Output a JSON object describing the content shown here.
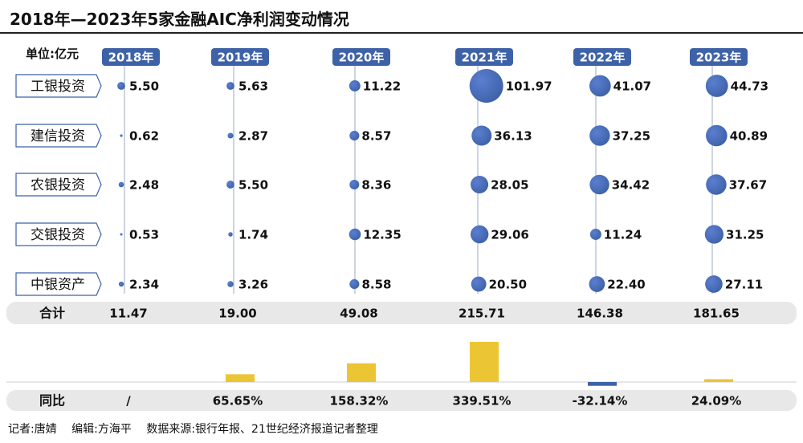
{
  "title": "2018年—2023年5家金融AIC净利润变动情况",
  "unit_label": "单位:亿元",
  "total_label": "合计",
  "yoy_label": "同比",
  "credits": {
    "reporter": "记者:唐婧",
    "editor": "编辑:方海平",
    "source": "数据来源:银行年报、21世纪经济报道记者整理"
  },
  "colors": {
    "bubble": "#3e62a8",
    "header_bg": "#3e62a8",
    "bar_positive": "#ecc534",
    "bar_negative": "#3e62a8",
    "band_bg": "#e8e8e8"
  },
  "chart_data": {
    "type": "bubble",
    "categories": [
      "2018年",
      "2019年",
      "2020年",
      "2021年",
      "2022年",
      "2023年"
    ],
    "series": [
      {
        "name": "工银投资",
        "values": [
          "5.50",
          "5.63",
          "11.22",
          "101.97",
          "41.07",
          "44.73"
        ]
      },
      {
        "name": "建信投资",
        "values": [
          "0.62",
          "2.87",
          "8.57",
          "36.13",
          "37.25",
          "40.89"
        ]
      },
      {
        "name": "农银投资",
        "values": [
          "2.48",
          "5.50",
          "8.36",
          "28.05",
          "34.42",
          "37.67"
        ]
      },
      {
        "name": "交银投资",
        "values": [
          "0.53",
          "1.74",
          "12.35",
          "29.06",
          "11.24",
          "31.25"
        ]
      },
      {
        "name": "中银资产",
        "values": [
          "2.34",
          "3.26",
          "8.58",
          "20.50",
          "22.40",
          "27.11"
        ]
      }
    ],
    "totals": [
      "11.47",
      "19.00",
      "49.08",
      "215.71",
      "146.38",
      "181.65"
    ],
    "yoy": [
      "/",
      "65.65%",
      "158.32%",
      "339.51%",
      "-32.14%",
      "24.09%"
    ],
    "yoy_values": [
      null,
      65.65,
      158.32,
      339.51,
      -32.14,
      24.09
    ]
  }
}
